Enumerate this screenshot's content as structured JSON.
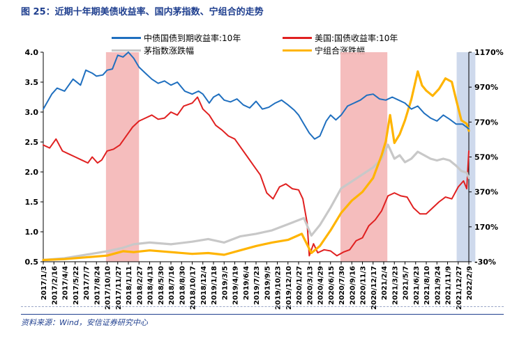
{
  "title": "图 25：近期十年期美债收益率、国内茅指数、宁组合的走势",
  "source": "资料来源：Wind，安信证券研究中心",
  "chart_data": {
    "type": "line",
    "x_tick_labels": [
      "2017/1/3",
      "2017/2/16",
      "2017/4/4",
      "2017/5/22",
      "2017/7/7",
      "2017/8/24",
      "2017/10/10",
      "2017/11/27",
      "2018/1/11",
      "2018/2/27",
      "2018/4/13",
      "2018/5/30",
      "2018/7/16",
      "2018/8/30",
      "2018/10/17",
      "2018/12/4",
      "2019/1/18",
      "2019/3/5",
      "2019/4/19",
      "2019/6/4",
      "2019/7/23",
      "2019/9/5",
      "2019/10/23",
      "2019/12/10",
      "2020/1/27",
      "2020/3/13",
      "2020/4/29",
      "2020/6/15",
      "2020/7/30",
      "2020/9/16",
      "2020/11/3",
      "2020/12/17",
      "2021/2/4",
      "2021/3/23",
      "2021/5/7",
      "2021/6/23",
      "2021/8/10",
      "2021/9/24",
      "2021/11/9",
      "2021/12/27",
      "2022/2/9"
    ],
    "y_left": {
      "min": 0.5,
      "max": 4.0,
      "ticks": [
        "0.5",
        "1.0",
        "1.5",
        "2.0",
        "2.5",
        "3.0",
        "3.5",
        "4.0"
      ]
    },
    "y_right": {
      "min": -30,
      "max": 1170,
      "ticks": [
        "-30%",
        "170%",
        "370%",
        "570%",
        "770%",
        "970%",
        "1170%"
      ]
    },
    "shaded_regions": [
      {
        "from": "2017/10/5",
        "to": "2018/2/27",
        "color": "#f4b6b6"
      },
      {
        "from": "2020/7/27",
        "to": "2021/2/20",
        "color": "#f4b6b6"
      },
      {
        "from": "2021/12/20",
        "to": "2022/3/8",
        "color": "#c9d5ea"
      }
    ],
    "series": [
      {
        "name": "中债国债到期收益率:10年",
        "axis": "left",
        "color": "#1f6fbf",
        "points": [
          [
            0,
            3.05
          ],
          [
            0.8,
            3.3
          ],
          [
            1.3,
            3.4
          ],
          [
            2,
            3.35
          ],
          [
            2.8,
            3.55
          ],
          [
            3.5,
            3.45
          ],
          [
            4,
            3.7
          ],
          [
            4.6,
            3.65
          ],
          [
            5,
            3.6
          ],
          [
            5.6,
            3.62
          ],
          [
            6,
            3.7
          ],
          [
            6.5,
            3.72
          ],
          [
            7,
            3.95
          ],
          [
            7.5,
            3.92
          ],
          [
            8,
            4.0
          ],
          [
            8.5,
            3.9
          ],
          [
            9,
            3.75
          ],
          [
            9.6,
            3.65
          ],
          [
            10.2,
            3.55
          ],
          [
            10.8,
            3.48
          ],
          [
            11.4,
            3.52
          ],
          [
            12,
            3.45
          ],
          [
            12.6,
            3.5
          ],
          [
            13.3,
            3.35
          ],
          [
            14,
            3.3
          ],
          [
            14.6,
            3.35
          ],
          [
            15,
            3.3
          ],
          [
            15.6,
            3.15
          ],
          [
            16,
            3.25
          ],
          [
            16.5,
            3.3
          ],
          [
            17,
            3.2
          ],
          [
            17.6,
            3.17
          ],
          [
            18.2,
            3.22
          ],
          [
            18.8,
            3.12
          ],
          [
            19.4,
            3.07
          ],
          [
            20,
            3.18
          ],
          [
            20.6,
            3.05
          ],
          [
            21.2,
            3.08
          ],
          [
            21.8,
            3.15
          ],
          [
            22.4,
            3.2
          ],
          [
            23,
            3.12
          ],
          [
            23.6,
            3.03
          ],
          [
            24,
            2.95
          ],
          [
            24.5,
            2.8
          ],
          [
            25,
            2.65
          ],
          [
            25.5,
            2.55
          ],
          [
            26,
            2.6
          ],
          [
            26.6,
            2.85
          ],
          [
            27,
            2.95
          ],
          [
            27.5,
            2.87
          ],
          [
            28,
            2.95
          ],
          [
            28.6,
            3.1
          ],
          [
            29.2,
            3.15
          ],
          [
            29.8,
            3.2
          ],
          [
            30.4,
            3.28
          ],
          [
            31,
            3.3
          ],
          [
            31.6,
            3.22
          ],
          [
            32.2,
            3.2
          ],
          [
            32.8,
            3.25
          ],
          [
            33.4,
            3.2
          ],
          [
            34,
            3.15
          ],
          [
            34.6,
            3.05
          ],
          [
            35.2,
            3.1
          ],
          [
            35.8,
            2.98
          ],
          [
            36.4,
            2.9
          ],
          [
            37,
            2.85
          ],
          [
            37.6,
            2.95
          ],
          [
            38.2,
            2.88
          ],
          [
            38.8,
            2.8
          ],
          [
            39.4,
            2.8
          ],
          [
            40,
            2.72
          ]
        ]
      },
      {
        "name": "美国:国债收益率:10年",
        "axis": "left",
        "color": "#e02020",
        "points": [
          [
            0,
            2.45
          ],
          [
            0.6,
            2.4
          ],
          [
            1.2,
            2.55
          ],
          [
            1.8,
            2.35
          ],
          [
            2.4,
            2.3
          ],
          [
            3,
            2.25
          ],
          [
            3.6,
            2.2
          ],
          [
            4.2,
            2.15
          ],
          [
            4.6,
            2.25
          ],
          [
            5.1,
            2.15
          ],
          [
            5.5,
            2.2
          ],
          [
            6,
            2.35
          ],
          [
            6.6,
            2.38
          ],
          [
            7.2,
            2.45
          ],
          [
            7.8,
            2.6
          ],
          [
            8.4,
            2.75
          ],
          [
            9,
            2.85
          ],
          [
            9.6,
            2.9
          ],
          [
            10.2,
            2.95
          ],
          [
            10.8,
            2.88
          ],
          [
            11.4,
            2.9
          ],
          [
            12,
            3.0
          ],
          [
            12.6,
            2.95
          ],
          [
            13.2,
            3.1
          ],
          [
            14,
            3.15
          ],
          [
            14.5,
            3.25
          ],
          [
            15,
            3.05
          ],
          [
            15.6,
            2.95
          ],
          [
            16.2,
            2.78
          ],
          [
            16.8,
            2.7
          ],
          [
            17.4,
            2.6
          ],
          [
            18,
            2.55
          ],
          [
            18.6,
            2.4
          ],
          [
            19.2,
            2.25
          ],
          [
            19.8,
            2.1
          ],
          [
            20.4,
            1.95
          ],
          [
            21,
            1.65
          ],
          [
            21.6,
            1.55
          ],
          [
            22.2,
            1.75
          ],
          [
            22.8,
            1.8
          ],
          [
            23.4,
            1.72
          ],
          [
            24,
            1.7
          ],
          [
            24.4,
            1.55
          ],
          [
            24.8,
            1.15
          ],
          [
            25.0,
            0.6
          ],
          [
            25.4,
            0.8
          ],
          [
            25.8,
            0.65
          ],
          [
            26.4,
            0.7
          ],
          [
            27,
            0.68
          ],
          [
            27.6,
            0.6
          ],
          [
            28.2,
            0.66
          ],
          [
            28.8,
            0.7
          ],
          [
            29.4,
            0.85
          ],
          [
            30,
            0.9
          ],
          [
            30.6,
            1.1
          ],
          [
            31.2,
            1.2
          ],
          [
            31.8,
            1.35
          ],
          [
            32.4,
            1.6
          ],
          [
            33,
            1.65
          ],
          [
            33.6,
            1.6
          ],
          [
            34.2,
            1.58
          ],
          [
            34.8,
            1.4
          ],
          [
            35.4,
            1.3
          ],
          [
            36,
            1.3
          ],
          [
            36.6,
            1.4
          ],
          [
            37.2,
            1.5
          ],
          [
            37.8,
            1.58
          ],
          [
            38.4,
            1.55
          ],
          [
            39,
            1.75
          ],
          [
            39.5,
            1.85
          ],
          [
            39.8,
            1.72
          ],
          [
            40,
            2.35
          ]
        ]
      },
      {
        "name": "茅指数涨跌幅",
        "axis": "right",
        "color": "#c8c8c8",
        "points": [
          [
            0,
            -20
          ],
          [
            2,
            -10
          ],
          [
            4,
            10
          ],
          [
            6,
            30
          ],
          [
            7.5,
            50
          ],
          [
            8.5,
            70
          ],
          [
            10,
            80
          ],
          [
            12,
            70
          ],
          [
            14,
            85
          ],
          [
            15.5,
            100
          ],
          [
            17,
            80
          ],
          [
            18.5,
            115
          ],
          [
            20,
            130
          ],
          [
            21.5,
            150
          ],
          [
            23,
            185
          ],
          [
            24.5,
            220
          ],
          [
            25.2,
            120
          ],
          [
            26,
            180
          ],
          [
            27,
            280
          ],
          [
            28,
            390
          ],
          [
            29,
            430
          ],
          [
            30,
            470
          ],
          [
            31,
            510
          ],
          [
            31.8,
            560
          ],
          [
            32.4,
            640
          ],
          [
            33,
            560
          ],
          [
            33.5,
            580
          ],
          [
            34,
            540
          ],
          [
            34.6,
            560
          ],
          [
            35.2,
            600
          ],
          [
            35.8,
            580
          ],
          [
            36.4,
            560
          ],
          [
            37,
            550
          ],
          [
            37.6,
            560
          ],
          [
            38.2,
            550
          ],
          [
            38.8,
            520
          ],
          [
            39.3,
            490
          ],
          [
            39.8,
            480
          ],
          [
            40,
            450
          ]
        ]
      },
      {
        "name": "宁组合涨跌幅",
        "axis": "right",
        "color": "#ffb400",
        "points": [
          [
            0,
            -20
          ],
          [
            2,
            -15
          ],
          [
            4,
            -5
          ],
          [
            6,
            5
          ],
          [
            7.5,
            30
          ],
          [
            8.5,
            25
          ],
          [
            10,
            35
          ],
          [
            12,
            25
          ],
          [
            14,
            15
          ],
          [
            15.5,
            20
          ],
          [
            17,
            10
          ],
          [
            18.5,
            35
          ],
          [
            20,
            60
          ],
          [
            21.5,
            80
          ],
          [
            23,
            95
          ],
          [
            24.3,
            130
          ],
          [
            25.2,
            20
          ],
          [
            26,
            60
          ],
          [
            27,
            150
          ],
          [
            28,
            250
          ],
          [
            29,
            320
          ],
          [
            30,
            370
          ],
          [
            31,
            450
          ],
          [
            31.8,
            580
          ],
          [
            32.2,
            660
          ],
          [
            32.6,
            810
          ],
          [
            33,
            650
          ],
          [
            33.5,
            700
          ],
          [
            34,
            780
          ],
          [
            34.6,
            900
          ],
          [
            35.2,
            1060
          ],
          [
            35.6,
            980
          ],
          [
            36,
            950
          ],
          [
            36.6,
            920
          ],
          [
            37.2,
            960
          ],
          [
            37.8,
            1020
          ],
          [
            38.4,
            1000
          ],
          [
            38.8,
            900
          ],
          [
            39.3,
            780
          ],
          [
            39.8,
            760
          ],
          [
            40,
            720
          ]
        ]
      }
    ]
  }
}
